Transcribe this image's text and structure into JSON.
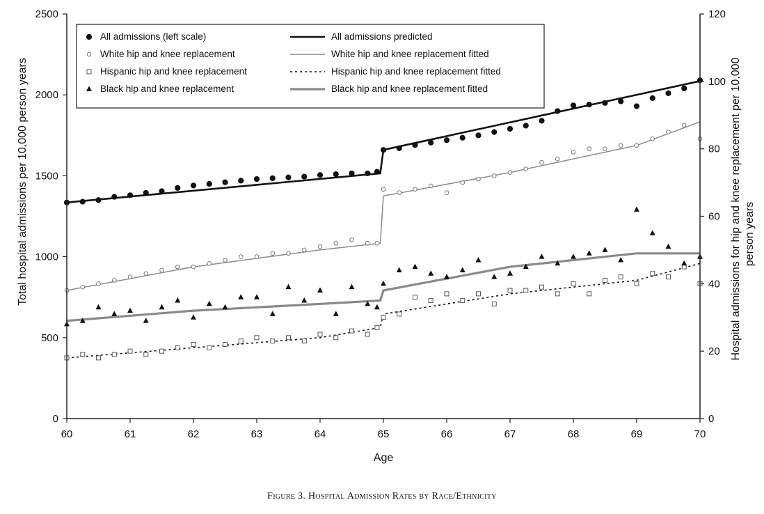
{
  "chart_data": {
    "type": "scatter",
    "caption": "Figure 3. Hospital Admission Rates by Race/Ethnicity",
    "xlabel": "Age",
    "ylabel_left": "Total hospital admissions per 10,000 person years",
    "ylabel_right_line1": "Hospital admissions for hip and knee replacement per 10,000",
    "ylabel_right_line2": "person years",
    "x_ticks": [
      "60",
      "61",
      "62",
      "63",
      "64",
      "65",
      "66",
      "67",
      "68",
      "69",
      "70"
    ],
    "y_left_ticks": [
      "0",
      "500",
      "1000",
      "1500",
      "2000",
      "2500"
    ],
    "y_right_ticks": [
      "0",
      "20",
      "40",
      "60",
      "80",
      "100",
      "120"
    ],
    "xlim": [
      60,
      70
    ],
    "ylim_left": [
      0,
      2500
    ],
    "ylim_right": [
      0,
      120
    ],
    "legend_position": "top-left",
    "series": [
      {
        "name": "All admissions (left scale)",
        "axis": "left",
        "style": "filled-circle",
        "color": "#111111",
        "points": [
          [
            60.0,
            1335
          ],
          [
            60.25,
            1340
          ],
          [
            60.5,
            1350
          ],
          [
            60.75,
            1370
          ],
          [
            61.0,
            1380
          ],
          [
            61.25,
            1395
          ],
          [
            61.5,
            1405
          ],
          [
            61.75,
            1425
          ],
          [
            62.0,
            1440
          ],
          [
            62.25,
            1450
          ],
          [
            62.5,
            1460
          ],
          [
            62.75,
            1470
          ],
          [
            63.0,
            1480
          ],
          [
            63.25,
            1485
          ],
          [
            63.5,
            1490
          ],
          [
            63.75,
            1495
          ],
          [
            64.0,
            1505
          ],
          [
            64.25,
            1510
          ],
          [
            64.5,
            1515
          ],
          [
            64.75,
            1515
          ],
          [
            64.9,
            1525
          ],
          [
            65.0,
            1660
          ],
          [
            65.25,
            1670
          ],
          [
            65.5,
            1690
          ],
          [
            65.75,
            1705
          ],
          [
            66.0,
            1720
          ],
          [
            66.25,
            1735
          ],
          [
            66.5,
            1750
          ],
          [
            66.75,
            1770
          ],
          [
            67.0,
            1790
          ],
          [
            67.25,
            1810
          ],
          [
            67.5,
            1840
          ],
          [
            67.75,
            1900
          ],
          [
            68.0,
            1935
          ],
          [
            68.25,
            1940
          ],
          [
            68.5,
            1950
          ],
          [
            68.75,
            1960
          ],
          [
            69.0,
            1930
          ],
          [
            69.25,
            1980
          ],
          [
            69.5,
            2010
          ],
          [
            69.75,
            2040
          ],
          [
            70.0,
            2090
          ]
        ]
      },
      {
        "name": "White hip and knee replacement",
        "axis": "right",
        "style": "open-circle",
        "color": "#777777",
        "points": [
          [
            60.0,
            38
          ],
          [
            60.25,
            39
          ],
          [
            60.5,
            40
          ],
          [
            60.75,
            41
          ],
          [
            61.0,
            42
          ],
          [
            61.25,
            43
          ],
          [
            61.5,
            44
          ],
          [
            61.75,
            45
          ],
          [
            62.0,
            45
          ],
          [
            62.25,
            46
          ],
          [
            62.5,
            47
          ],
          [
            62.75,
            48
          ],
          [
            63.0,
            48
          ],
          [
            63.25,
            49
          ],
          [
            63.5,
            49
          ],
          [
            63.75,
            50
          ],
          [
            64.0,
            51
          ],
          [
            64.25,
            52
          ],
          [
            64.5,
            53
          ],
          [
            64.75,
            52
          ],
          [
            64.9,
            52
          ],
          [
            65.0,
            68
          ],
          [
            65.25,
            67
          ],
          [
            65.5,
            68
          ],
          [
            65.75,
            69
          ],
          [
            66.0,
            67
          ],
          [
            66.25,
            70
          ],
          [
            66.5,
            71
          ],
          [
            66.75,
            72
          ],
          [
            67.0,
            73
          ],
          [
            67.25,
            74
          ],
          [
            67.5,
            76
          ],
          [
            67.75,
            77
          ],
          [
            68.0,
            79
          ],
          [
            68.25,
            80
          ],
          [
            68.5,
            80
          ],
          [
            68.75,
            81
          ],
          [
            69.0,
            81
          ],
          [
            69.25,
            83
          ],
          [
            69.5,
            85
          ],
          [
            69.75,
            87
          ],
          [
            70.0,
            83
          ]
        ]
      },
      {
        "name": "Hispanic hip and knee replacement",
        "axis": "right",
        "style": "open-square",
        "color": "#555555",
        "points": [
          [
            60.0,
            18
          ],
          [
            60.25,
            19
          ],
          [
            60.5,
            18
          ],
          [
            60.75,
            19
          ],
          [
            61.0,
            20
          ],
          [
            61.25,
            19
          ],
          [
            61.5,
            20
          ],
          [
            61.75,
            21
          ],
          [
            62.0,
            22
          ],
          [
            62.25,
            21
          ],
          [
            62.5,
            22
          ],
          [
            62.75,
            23
          ],
          [
            63.0,
            24
          ],
          [
            63.25,
            23
          ],
          [
            63.5,
            24
          ],
          [
            63.75,
            23
          ],
          [
            64.0,
            25
          ],
          [
            64.25,
            24
          ],
          [
            64.5,
            26
          ],
          [
            64.75,
            25
          ],
          [
            64.9,
            27
          ],
          [
            65.0,
            30
          ],
          [
            65.25,
            31
          ],
          [
            65.5,
            36
          ],
          [
            65.75,
            35
          ],
          [
            66.0,
            37
          ],
          [
            66.25,
            35
          ],
          [
            66.5,
            37
          ],
          [
            66.75,
            34
          ],
          [
            67.0,
            38
          ],
          [
            67.25,
            38
          ],
          [
            67.5,
            39
          ],
          [
            67.75,
            37
          ],
          [
            68.0,
            40
          ],
          [
            68.25,
            37
          ],
          [
            68.5,
            41
          ],
          [
            68.75,
            42
          ],
          [
            69.0,
            40
          ],
          [
            69.25,
            43
          ],
          [
            69.5,
            42
          ],
          [
            69.75,
            45
          ],
          [
            70.0,
            40
          ]
        ]
      },
      {
        "name": "Black hip and knee replacement",
        "axis": "right",
        "style": "filled-triangle",
        "color": "#111111",
        "points": [
          [
            60.0,
            28
          ],
          [
            60.25,
            29
          ],
          [
            60.5,
            33
          ],
          [
            60.75,
            31
          ],
          [
            61.0,
            32
          ],
          [
            61.25,
            29
          ],
          [
            61.5,
            33
          ],
          [
            61.75,
            35
          ],
          [
            62.0,
            30
          ],
          [
            62.25,
            34
          ],
          [
            62.5,
            33
          ],
          [
            62.75,
            36
          ],
          [
            63.0,
            36
          ],
          [
            63.25,
            31
          ],
          [
            63.5,
            39
          ],
          [
            63.75,
            35
          ],
          [
            64.0,
            38
          ],
          [
            64.25,
            31
          ],
          [
            64.5,
            39
          ],
          [
            64.75,
            34
          ],
          [
            64.9,
            33
          ],
          [
            65.0,
            40
          ],
          [
            65.25,
            44
          ],
          [
            65.5,
            45
          ],
          [
            65.75,
            43
          ],
          [
            66.0,
            42
          ],
          [
            66.25,
            44
          ],
          [
            66.5,
            47
          ],
          [
            66.75,
            42
          ],
          [
            67.0,
            43
          ],
          [
            67.25,
            45
          ],
          [
            67.5,
            48
          ],
          [
            67.75,
            46
          ],
          [
            68.0,
            48
          ],
          [
            68.25,
            49
          ],
          [
            68.5,
            50
          ],
          [
            68.75,
            47
          ],
          [
            69.0,
            62
          ],
          [
            69.25,
            55
          ],
          [
            69.5,
            51
          ],
          [
            69.75,
            46
          ],
          [
            70.0,
            48
          ]
        ]
      },
      {
        "name": "All admissions predicted",
        "axis": "left",
        "style": "solid-thick",
        "color": "#111111",
        "points": [
          [
            60,
            1335
          ],
          [
            64.95,
            1515
          ],
          [
            65.0,
            1660
          ],
          [
            70,
            2085
          ]
        ]
      },
      {
        "name": "White hip and knee replacement fitted",
        "axis": "right",
        "style": "solid-thin",
        "color": "#8a8a8a",
        "points": [
          [
            60,
            38
          ],
          [
            62,
            45
          ],
          [
            64,
            50
          ],
          [
            64.95,
            52
          ],
          [
            65.0,
            66
          ],
          [
            67,
            73
          ],
          [
            69,
            81
          ],
          [
            70,
            88
          ]
        ]
      },
      {
        "name": "Hispanic hip and knee replacement fitted",
        "axis": "right",
        "style": "dotted",
        "color": "#111111",
        "points": [
          [
            60,
            18
          ],
          [
            62,
            21
          ],
          [
            64,
            24
          ],
          [
            64.95,
            27
          ],
          [
            65.0,
            31
          ],
          [
            67,
            37
          ],
          [
            69,
            41
          ],
          [
            70,
            46
          ]
        ]
      },
      {
        "name": "Black hip and knee replacement fitted",
        "axis": "right",
        "style": "solid-gray-thick",
        "color": "#8a8a8a",
        "points": [
          [
            60,
            29
          ],
          [
            62,
            32
          ],
          [
            64,
            34
          ],
          [
            64.95,
            35
          ],
          [
            65.0,
            38
          ],
          [
            67,
            45
          ],
          [
            69,
            49
          ],
          [
            70,
            49
          ]
        ]
      }
    ]
  }
}
